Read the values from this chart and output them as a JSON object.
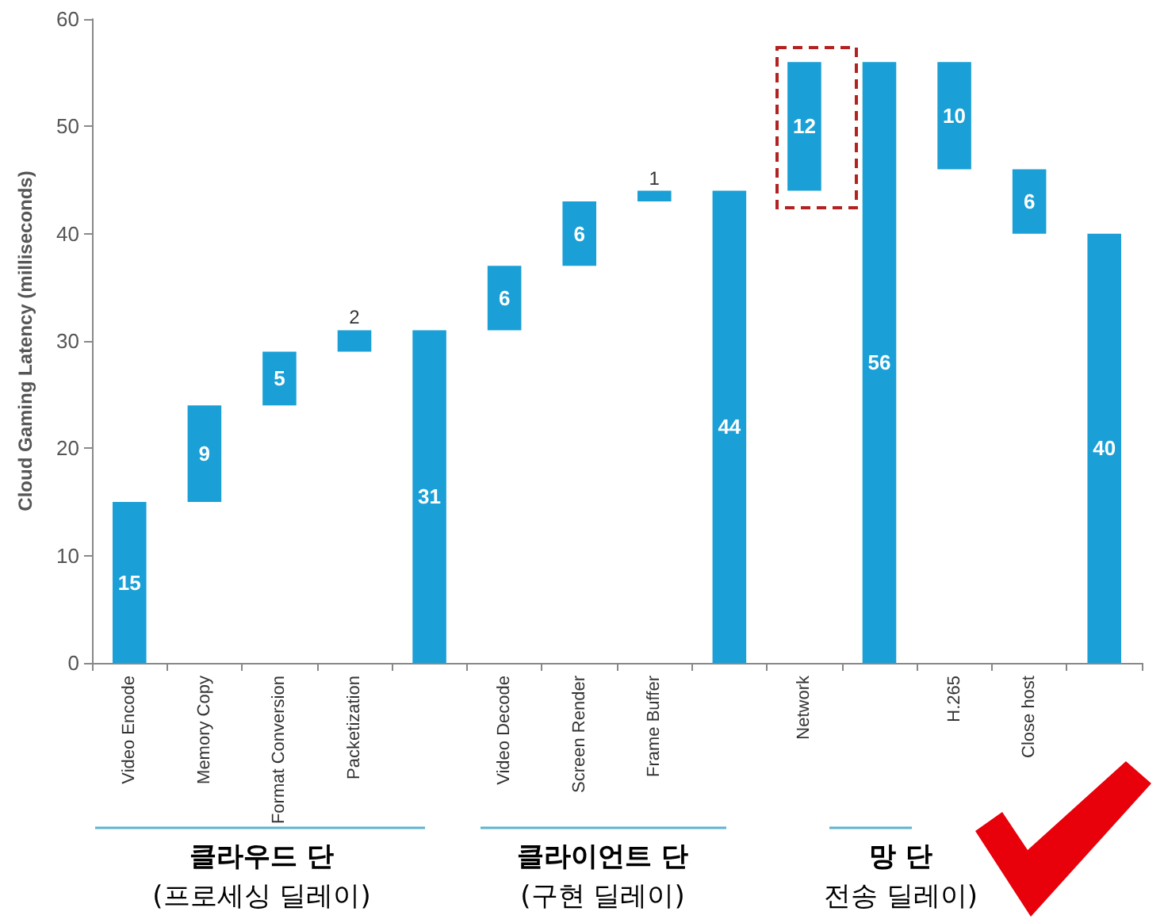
{
  "chart_data": {
    "type": "bar",
    "ylabel": "Cloud Gaming Latency (milliseconds)",
    "categories": [
      "Video Encode",
      "Memory Copy",
      "Format Conversion",
      "Packetization",
      null,
      "Video Decode",
      "Screen Render",
      "Frame Buffer",
      null,
      "Network",
      null,
      "H.265",
      "Close host",
      null
    ],
    "values": [
      15,
      9,
      5,
      2,
      31,
      6,
      6,
      1,
      44,
      12,
      56,
      10,
      6,
      40
    ],
    "base": [
      0,
      15,
      24,
      29,
      0,
      31,
      37,
      43,
      0,
      44,
      0,
      46,
      40,
      0
    ],
    "color": "#1a9fd6",
    "ylim": [
      0,
      60
    ],
    "yticks": [
      0,
      10,
      20,
      30,
      40,
      50,
      60
    ],
    "grid": false,
    "data_labels": true,
    "annotations": [
      "클라우드 단",
      "(프로세싱 딜레이)",
      "클라이언트 단",
      "(구현 딜레이)",
      "망 단",
      "전송 딜레이)"
    ]
  }
}
